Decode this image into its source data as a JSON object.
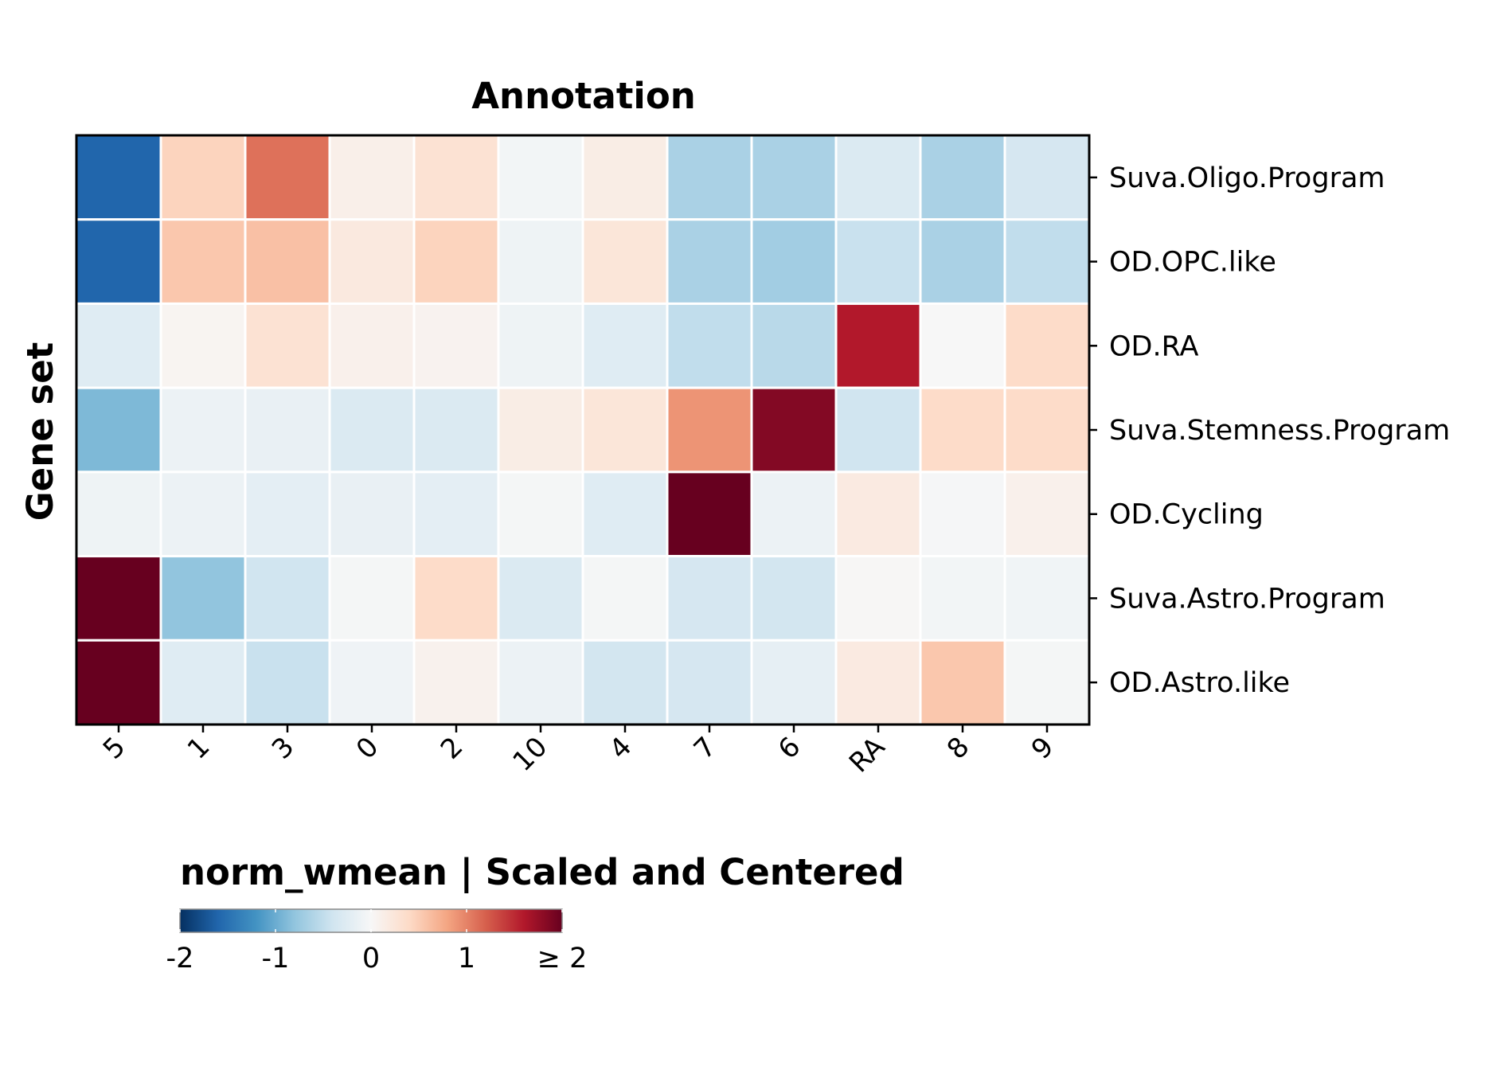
{
  "chart_data": {
    "type": "heatmap",
    "title": "Annotation",
    "xlabel": "",
    "ylabel": "Gene set",
    "x_categories": [
      "5",
      "1",
      "3",
      "0",
      "2",
      "10",
      "4",
      "7",
      "6",
      "RA",
      "8",
      "9"
    ],
    "y_categories": [
      "Suva.Oligo.Program",
      "OD.OPC.like",
      "OD.RA",
      "Suva.Stemness.Program",
      "OD.Cycling",
      "Suva.Astro.Program",
      "OD.Astro.like"
    ],
    "values": [
      [
        -1.6,
        0.45,
        1.1,
        0.12,
        0.3,
        -0.05,
        0.15,
        -0.65,
        -0.65,
        -0.3,
        -0.65,
        -0.35
      ],
      [
        -1.6,
        0.55,
        0.6,
        0.2,
        0.45,
        -0.1,
        0.25,
        -0.65,
        -0.7,
        -0.45,
        -0.65,
        -0.5
      ],
      [
        -0.25,
        0.05,
        0.3,
        0.1,
        0.07,
        -0.1,
        -0.25,
        -0.5,
        -0.55,
        1.6,
        0.0,
        0.38
      ],
      [
        -0.9,
        -0.12,
        -0.15,
        -0.3,
        -0.3,
        0.15,
        0.25,
        0.9,
        1.85,
        -0.4,
        0.38,
        0.38
      ],
      [
        -0.1,
        -0.12,
        -0.2,
        -0.15,
        -0.2,
        -0.03,
        -0.25,
        2.0,
        -0.12,
        0.18,
        -0.02,
        0.1
      ],
      [
        2.0,
        -0.8,
        -0.4,
        -0.03,
        0.38,
        -0.3,
        -0.03,
        -0.35,
        -0.38,
        0.02,
        -0.05,
        -0.07
      ],
      [
        2.0,
        -0.25,
        -0.45,
        -0.08,
        0.08,
        -0.12,
        -0.38,
        -0.35,
        -0.18,
        0.18,
        0.55,
        -0.03
      ]
    ],
    "colormap": "RdBu_r",
    "vmin": -2,
    "vmax": 2,
    "colorbar": {
      "title": "norm_wmean | Scaled and Centered",
      "ticks": [
        -2,
        -1,
        0,
        1,
        2
      ],
      "tick_labels": [
        "-2",
        "-1",
        "0",
        "1",
        "≥ 2"
      ]
    },
    "grid": true,
    "y_tick_side": "right"
  }
}
